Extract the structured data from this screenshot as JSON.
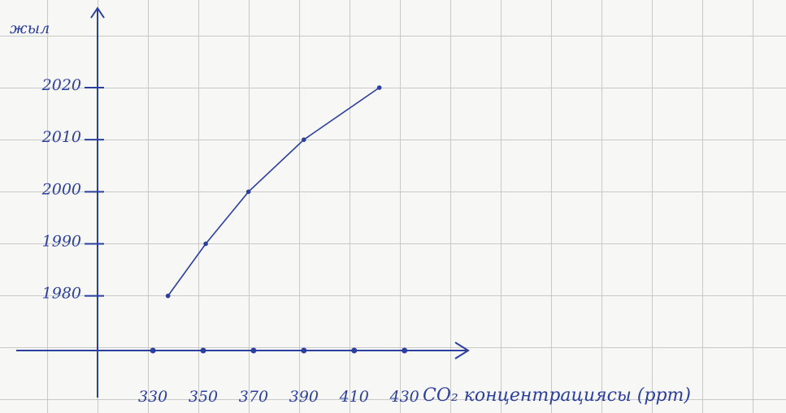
{
  "chart_data": {
    "type": "line",
    "ylabel": "жыл",
    "xlabel": "CO₂ концентрациясы (ppm)",
    "x": [
      336,
      351,
      368,
      390,
      420
    ],
    "values": [
      1980,
      1990,
      2000,
      2010,
      2020
    ],
    "color": "#2b3f9e",
    "xlim": [
      308,
      455
    ],
    "ylim": [
      1969.5,
      2034.5
    ],
    "xticks": [
      330,
      350,
      370,
      390,
      410,
      430
    ],
    "yticks": [
      1980,
      1990,
      2000,
      2010,
      2020
    ]
  }
}
